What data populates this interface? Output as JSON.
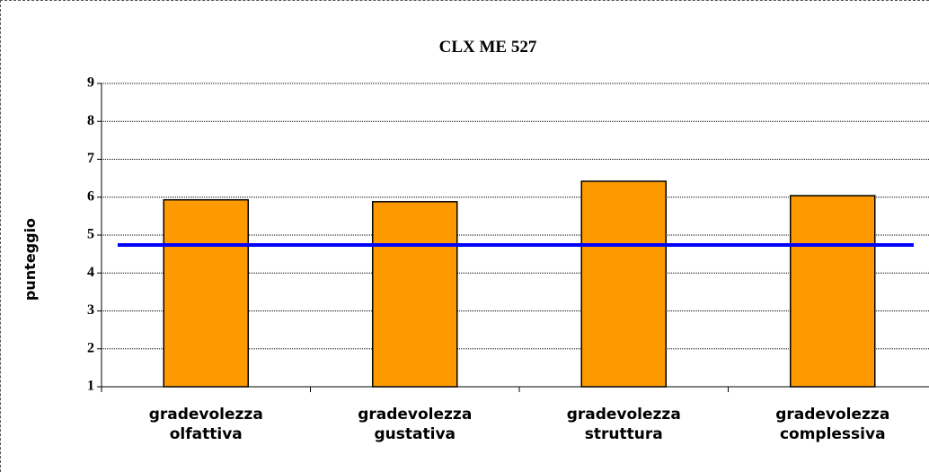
{
  "chart_data": {
    "type": "bar",
    "title": "CLX ME 527",
    "y_label": "punteggio",
    "categories": [
      "gradevolezza olfattiva",
      "gradevolezza gustativa",
      "gradevolezza struttura",
      "gradevolezza complessiva"
    ],
    "values": [
      5.93,
      5.88,
      6.42,
      6.04
    ],
    "color": "#ff9900",
    "reference_line": {
      "value": 4.74,
      "color": "#0000ff"
    },
    "ylim": [
      1,
      9
    ],
    "yticks": [
      1,
      2,
      3,
      4,
      5,
      6,
      7,
      8,
      9
    ],
    "grid": true
  }
}
